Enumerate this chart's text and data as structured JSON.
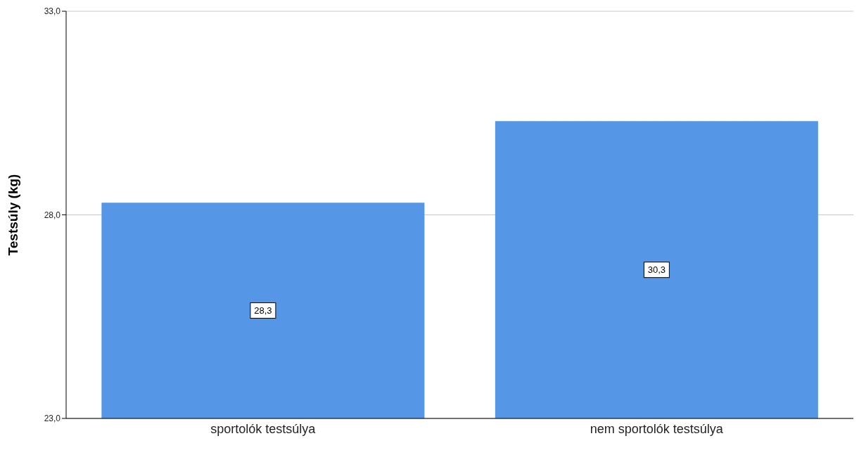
{
  "chart_data": {
    "type": "bar",
    "ylabel": "Testsúly (kg)",
    "categories": [
      "sportolók testsúlya",
      "nem sportolók testsúlya"
    ],
    "values": [
      28.3,
      30.3
    ],
    "value_labels": [
      "28,3",
      "30,3"
    ],
    "color": "#5596e6",
    "ylim": [
      23,
      33
    ],
    "yticks": [
      {
        "value": 23,
        "label": "23,0"
      },
      {
        "value": 28,
        "label": "28,0"
      },
      {
        "value": 33,
        "label": "33,0"
      }
    ],
    "grid": "y"
  }
}
